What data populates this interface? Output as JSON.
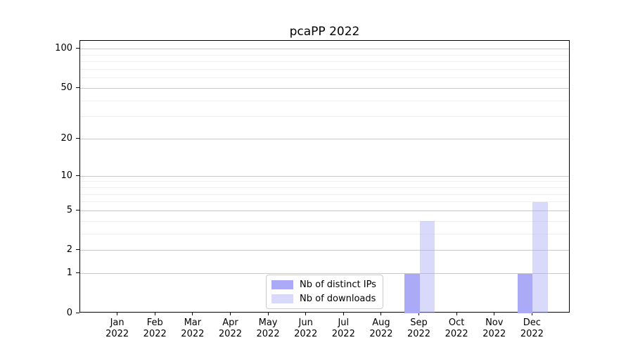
{
  "title": "pcaPP 2022",
  "chart_data": {
    "type": "bar",
    "title": "pcaPP 2022",
    "categories": [
      "Jan",
      "Feb",
      "Mar",
      "Apr",
      "May",
      "Jun",
      "Jul",
      "Aug",
      "Sep",
      "Oct",
      "Nov",
      "Dec"
    ],
    "year": "2022",
    "series": [
      {
        "name": "Nb of distinct IPs",
        "color": "#aaaaf6",
        "alpha": 1,
        "values": [
          0,
          0,
          0,
          0,
          0,
          0,
          0,
          0,
          1,
          0,
          0,
          1
        ]
      },
      {
        "name": "Nb of downloads",
        "color": "#aaaaf6",
        "alpha": 0.45,
        "values": [
          0,
          0,
          0,
          0,
          0,
          0,
          0,
          0,
          4,
          0,
          0,
          6
        ]
      }
    ],
    "xlabel": "",
    "ylabel": "",
    "y_scale": "log1p",
    "ylim": [
      0,
      116
    ],
    "y_tick_values": [
      0,
      1,
      2,
      5,
      10,
      20,
      50,
      100
    ],
    "y_tick_labels": [
      "0",
      "1",
      "2",
      "5",
      "10",
      "20",
      "50",
      "100"
    ],
    "grid": true,
    "grid_major_values": [
      1,
      2,
      5,
      10,
      20,
      50,
      100
    ],
    "grid_minor_values": [
      3,
      4,
      6,
      7,
      8,
      9,
      30,
      40,
      60,
      70,
      80,
      90
    ],
    "legend_position": "lower center"
  },
  "colors": {
    "background": "#ffffff",
    "axis": "#000000",
    "text": "#000000",
    "grid_major": "#c9c9c9",
    "grid_minor": "#efefef",
    "bar_dark": "#aaaaf6",
    "bar_light": "#dbdbf7",
    "legend_border": "#cccccc"
  }
}
